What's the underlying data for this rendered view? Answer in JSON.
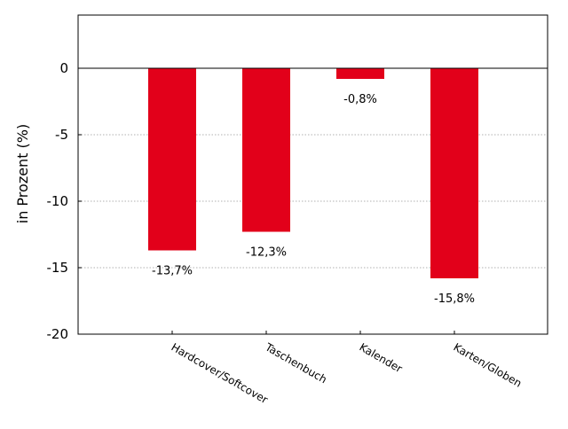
{
  "chart_data": {
    "type": "bar",
    "ylabel": "in Prozent (%)",
    "ylim": [
      -20,
      4
    ],
    "yticks": [
      0,
      -5,
      -10,
      -15,
      -20
    ],
    "ytick_labels": [
      "0",
      "-5",
      "-10",
      "-15",
      "-20"
    ],
    "categories": [
      "Hardcover/Softcover",
      "Taschenbuch",
      "Kalender",
      "Karten/Globen"
    ],
    "values": [
      -13.7,
      -12.3,
      -0.8,
      -15.8
    ],
    "data_labels": [
      "-13,7%",
      "-12,3%",
      "-0,8%",
      "-15,8%"
    ],
    "bar_color": "#e2001a",
    "gridlines": "dotted",
    "zero_line": true
  }
}
